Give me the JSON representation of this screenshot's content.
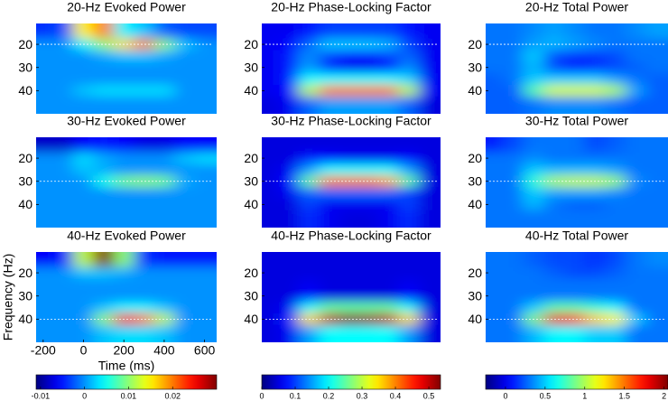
{
  "chart_data": [
    {
      "type": "heatmap",
      "title": "20-Hz Evoked Power",
      "x": [
        -200,
        -100,
        0,
        100,
        200,
        300,
        400,
        500,
        600
      ],
      "y": [
        15,
        20,
        25,
        30,
        35,
        40,
        45
      ],
      "xlim": [
        -235,
        660
      ],
      "ylim": [
        11,
        50
      ],
      "yticks": [
        20,
        30,
        40
      ],
      "clim": [
        -0.011,
        0.03
      ],
      "ref_line": 20,
      "values": [
        [
          -0.004,
          -0.003,
          0.015,
          0.02,
          0.004,
          0.002,
          -0.002,
          -0.003,
          -0.003
        ],
        [
          0,
          0,
          0.004,
          0.01,
          0.016,
          0.02,
          0.01,
          0.002,
          0
        ],
        [
          0,
          0,
          0,
          0.001,
          0.002,
          0.002,
          0.001,
          0,
          0
        ],
        [
          0,
          0,
          0,
          0,
          0,
          0,
          0,
          0,
          0
        ],
        [
          0,
          0,
          0,
          0,
          0,
          0,
          0,
          0,
          0
        ],
        [
          0,
          0,
          0.002,
          0.003,
          0.003,
          0.003,
          0.003,
          0,
          0
        ],
        [
          0,
          0,
          0,
          0,
          0,
          0,
          0,
          0,
          0
        ]
      ]
    },
    {
      "type": "heatmap",
      "title": "20-Hz Phase-Locking Factor",
      "x": [
        -200,
        -100,
        0,
        100,
        200,
        300,
        400,
        500,
        600
      ],
      "y": [
        15,
        20,
        25,
        30,
        35,
        40,
        45
      ],
      "xlim": [
        -235,
        660
      ],
      "ylim": [
        11,
        50
      ],
      "yticks": [
        20,
        30,
        40
      ],
      "clim": [
        0,
        0.535
      ],
      "ref_line": 20,
      "values": [
        [
          0.06,
          0.06,
          0.08,
          0.1,
          0.1,
          0.1,
          0.1,
          0.08,
          0.06
        ],
        [
          0.06,
          0.07,
          0.12,
          0.17,
          0.17,
          0.17,
          0.16,
          0.1,
          0.06
        ],
        [
          0.06,
          0.08,
          0.14,
          0.1,
          0.08,
          0.08,
          0.1,
          0.12,
          0.06
        ],
        [
          0.06,
          0.08,
          0.15,
          0.09,
          0.06,
          0.06,
          0.08,
          0.14,
          0.06
        ],
        [
          0.06,
          0.08,
          0.2,
          0.2,
          0.2,
          0.2,
          0.2,
          0.18,
          0.06
        ],
        [
          0.06,
          0.07,
          0.3,
          0.4,
          0.4,
          0.4,
          0.4,
          0.3,
          0.06
        ],
        [
          0.05,
          0.06,
          0.12,
          0.15,
          0.15,
          0.15,
          0.15,
          0.12,
          0.05
        ]
      ]
    },
    {
      "type": "heatmap",
      "title": "20-Hz Total Power",
      "x": [
        -200,
        -100,
        0,
        100,
        200,
        300,
        400,
        500,
        600
      ],
      "y": [
        15,
        20,
        25,
        30,
        35,
        40,
        45
      ],
      "xlim": [
        -235,
        660
      ],
      "ylim": [
        11,
        50
      ],
      "yticks": [
        20,
        30,
        40
      ],
      "clim": [
        -0.25,
        2.05
      ],
      "ref_line": 20,
      "values": [
        [
          0.3,
          0.3,
          0.35,
          0.4,
          0.35,
          0.3,
          0.3,
          0.35,
          0.4
        ],
        [
          0.3,
          0.3,
          0.4,
          0.45,
          0.4,
          0.35,
          0.3,
          0.3,
          0.3
        ],
        [
          0.3,
          0.3,
          0.5,
          0.2,
          0.15,
          0.15,
          0.2,
          0.3,
          0.3
        ],
        [
          0.3,
          0.3,
          0.45,
          0.2,
          0.1,
          0.15,
          0.2,
          0.25,
          0.3
        ],
        [
          0.25,
          0.3,
          0.5,
          0.5,
          0.5,
          0.5,
          0.4,
          0.3,
          0.25
        ],
        [
          0.25,
          0.25,
          0.8,
          1.1,
          1.1,
          1.1,
          1.0,
          0.4,
          0.25
        ],
        [
          0.25,
          0.25,
          0.3,
          0.35,
          0.35,
          0.35,
          0.3,
          0.25,
          0.25
        ]
      ]
    },
    {
      "type": "heatmap",
      "title": "30-Hz Evoked Power",
      "x": [
        -200,
        -100,
        0,
        100,
        200,
        300,
        400,
        500,
        600
      ],
      "y": [
        15,
        20,
        25,
        30,
        35,
        40,
        45
      ],
      "xlim": [
        -235,
        660
      ],
      "ylim": [
        11,
        50
      ],
      "yticks": [
        20,
        30,
        40
      ],
      "clim": [
        -0.011,
        0.03
      ],
      "ref_line": 30,
      "values": [
        [
          -0.008,
          -0.008,
          -0.006,
          -0.005,
          -0.006,
          -0.007,
          -0.007,
          -0.006,
          -0.006
        ],
        [
          0,
          0,
          0.003,
          0.001,
          0,
          0,
          0,
          0.002,
          0.003
        ],
        [
          0,
          0,
          0.002,
          0.001,
          0,
          0,
          0,
          0,
          0
        ],
        [
          0,
          0,
          0,
          0.005,
          0.009,
          0.01,
          0.009,
          0.001,
          0
        ],
        [
          0,
          0,
          0,
          0,
          0,
          0,
          0,
          0,
          0
        ],
        [
          0,
          0,
          0,
          0,
          0,
          0,
          0,
          0,
          0
        ],
        [
          0,
          0,
          0,
          0,
          0,
          0,
          0,
          0,
          0
        ]
      ]
    },
    {
      "type": "heatmap",
      "title": "30-Hz Phase-Locking Factor",
      "x": [
        -200,
        -100,
        0,
        100,
        200,
        300,
        400,
        500,
        600
      ],
      "y": [
        15,
        20,
        25,
        30,
        35,
        40,
        45
      ],
      "xlim": [
        -235,
        660
      ],
      "ylim": [
        11,
        50
      ],
      "yticks": [
        20,
        30,
        40
      ],
      "clim": [
        0,
        0.535
      ],
      "ref_line": 30,
      "values": [
        [
          0.05,
          0.05,
          0.05,
          0.05,
          0.05,
          0.05,
          0.05,
          0.05,
          0.05
        ],
        [
          0.05,
          0.05,
          0.08,
          0.07,
          0.06,
          0.06,
          0.06,
          0.07,
          0.05
        ],
        [
          0.05,
          0.06,
          0.15,
          0.2,
          0.2,
          0.2,
          0.2,
          0.15,
          0.05
        ],
        [
          0.05,
          0.07,
          0.25,
          0.4,
          0.4,
          0.4,
          0.38,
          0.25,
          0.05
        ],
        [
          0.05,
          0.06,
          0.12,
          0.12,
          0.12,
          0.12,
          0.12,
          0.1,
          0.05
        ],
        [
          0.05,
          0.05,
          0.1,
          0.06,
          0.06,
          0.06,
          0.06,
          0.1,
          0.05
        ],
        [
          0.05,
          0.05,
          0.09,
          0.06,
          0.05,
          0.05,
          0.06,
          0.09,
          0.05
        ]
      ]
    },
    {
      "type": "heatmap",
      "title": "30-Hz Total Power",
      "x": [
        -200,
        -100,
        0,
        100,
        200,
        300,
        400,
        500,
        600
      ],
      "y": [
        15,
        20,
        25,
        30,
        35,
        40,
        45
      ],
      "xlim": [
        -235,
        660
      ],
      "ylim": [
        11,
        50
      ],
      "yticks": [
        20,
        30,
        40
      ],
      "clim": [
        -0.25,
        2.05
      ],
      "ref_line": 30,
      "values": [
        [
          0.1,
          0.2,
          0.3,
          0.3,
          0.3,
          0.2,
          0.25,
          0.3,
          0.3
        ],
        [
          0.3,
          0.3,
          0.35,
          0.3,
          0.3,
          0.3,
          0.3,
          0.3,
          0.3
        ],
        [
          0.3,
          0.3,
          0.5,
          0.45,
          0.45,
          0.45,
          0.4,
          0.3,
          0.3
        ],
        [
          0.3,
          0.3,
          0.7,
          1.0,
          1.05,
          1.05,
          0.95,
          0.35,
          0.3
        ],
        [
          0.3,
          0.3,
          0.5,
          0.4,
          0.4,
          0.4,
          0.35,
          0.3,
          0.3
        ],
        [
          0.3,
          0.3,
          0.45,
          0.3,
          0.25,
          0.25,
          0.3,
          0.3,
          0.3
        ],
        [
          0.3,
          0.3,
          0.3,
          0.3,
          0.3,
          0.3,
          0.3,
          0.3,
          0.3
        ]
      ]
    },
    {
      "type": "heatmap",
      "title": "40-Hz Evoked Power",
      "x": [
        -200,
        -100,
        0,
        100,
        200,
        300,
        400,
        500,
        600
      ],
      "y": [
        15,
        20,
        25,
        30,
        35,
        40,
        45
      ],
      "xlim": [
        -235,
        660
      ],
      "ylim": [
        11,
        50
      ],
      "yticks": [
        20,
        30,
        40
      ],
      "clim": [
        -0.011,
        0.03
      ],
      "ref_line": 40,
      "xticks": [
        -200,
        0,
        200,
        400,
        600
      ],
      "xlabel": "Time (ms)",
      "ylabel": "Frequency (Hz)",
      "cticks": [
        -0.01,
        0,
        0.01,
        0.02
      ],
      "values": [
        [
          -0.006,
          -0.005,
          0.012,
          0.03,
          0.01,
          -0.004,
          -0.005,
          -0.005,
          -0.005
        ],
        [
          0,
          0,
          0.002,
          0.002,
          0.001,
          0,
          0,
          0,
          0
        ],
        [
          0,
          0,
          0,
          0,
          0,
          0,
          0,
          0,
          0
        ],
        [
          0,
          0,
          0,
          0,
          0,
          0,
          0,
          0,
          0
        ],
        [
          0,
          0,
          0,
          0.002,
          0.004,
          0.004,
          0.002,
          0,
          0
        ],
        [
          0,
          0,
          0,
          0.01,
          0.025,
          0.02,
          0.012,
          0,
          0
        ],
        [
          0,
          0,
          0,
          0.002,
          0.003,
          0.003,
          0.002,
          0,
          0
        ]
      ]
    },
    {
      "type": "heatmap",
      "title": "40-Hz Phase-Locking Factor",
      "x": [
        -200,
        -100,
        0,
        100,
        200,
        300,
        400,
        500,
        600
      ],
      "y": [
        15,
        20,
        25,
        30,
        35,
        40,
        45
      ],
      "xlim": [
        -235,
        660
      ],
      "ylim": [
        11,
        50
      ],
      "yticks": [
        20,
        30,
        40
      ],
      "clim": [
        0,
        0.535
      ],
      "ref_line": 40,
      "cticks": [
        0,
        0.1,
        0.2,
        0.3,
        0.4,
        0.5
      ],
      "values": [
        [
          0.05,
          0.05,
          0.05,
          0.05,
          0.05,
          0.05,
          0.05,
          0.05,
          0.05
        ],
        [
          0.05,
          0.05,
          0.05,
          0.05,
          0.05,
          0.05,
          0.05,
          0.05,
          0.05
        ],
        [
          0.05,
          0.05,
          0.06,
          0.05,
          0.05,
          0.05,
          0.05,
          0.06,
          0.05
        ],
        [
          0.05,
          0.05,
          0.07,
          0.05,
          0.05,
          0.05,
          0.05,
          0.07,
          0.05
        ],
        [
          0.05,
          0.06,
          0.2,
          0.25,
          0.25,
          0.25,
          0.25,
          0.2,
          0.05
        ],
        [
          0.05,
          0.08,
          0.35,
          0.5,
          0.53,
          0.52,
          0.5,
          0.35,
          0.05
        ],
        [
          0.05,
          0.06,
          0.15,
          0.2,
          0.2,
          0.2,
          0.2,
          0.15,
          0.05
        ]
      ]
    },
    {
      "type": "heatmap",
      "title": "40-Hz Total Power",
      "x": [
        -200,
        -100,
        0,
        100,
        200,
        300,
        400,
        500,
        600
      ],
      "y": [
        15,
        20,
        25,
        30,
        35,
        40,
        45
      ],
      "xlim": [
        -235,
        660
      ],
      "ylim": [
        11,
        50
      ],
      "yticks": [
        20,
        30,
        40
      ],
      "clim": [
        -0.25,
        2.05
      ],
      "ref_line": 40,
      "cticks": [
        0,
        0.5,
        1,
        1.5,
        2
      ],
      "values": [
        [
          0.3,
          0.3,
          0.25,
          0.2,
          0.2,
          0.15,
          0.2,
          0.3,
          0.35
        ],
        [
          0.3,
          0.3,
          0.3,
          0.25,
          0.2,
          0.2,
          0.25,
          0.3,
          0.3
        ],
        [
          0.3,
          0.3,
          0.3,
          0.3,
          0.3,
          0.3,
          0.3,
          0.3,
          0.3
        ],
        [
          0.3,
          0.3,
          0.3,
          0.3,
          0.3,
          0.3,
          0.3,
          0.3,
          0.3
        ],
        [
          0.3,
          0.3,
          0.5,
          0.8,
          0.8,
          0.7,
          0.6,
          0.3,
          0.3
        ],
        [
          0.3,
          0.3,
          0.9,
          1.8,
          1.7,
          1.3,
          1.2,
          0.5,
          0.3
        ],
        [
          0.3,
          0.3,
          0.45,
          0.6,
          0.6,
          0.5,
          0.5,
          0.3,
          0.3
        ]
      ]
    }
  ]
}
